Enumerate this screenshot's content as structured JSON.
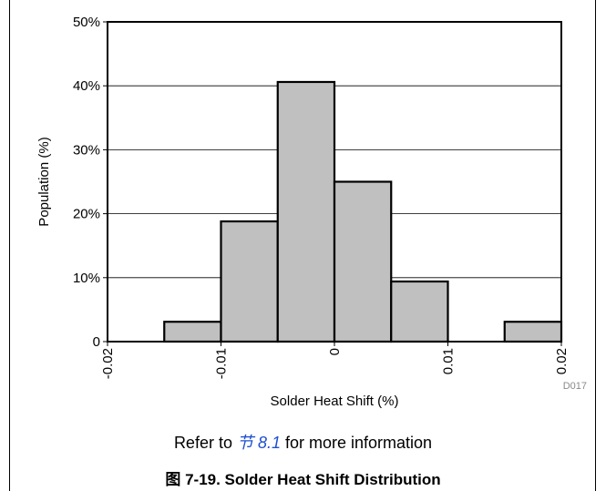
{
  "chart_data": {
    "type": "bar",
    "bins": [
      {
        "x0": -0.015,
        "x1": -0.01,
        "value": 3.1
      },
      {
        "x0": -0.01,
        "x1": -0.005,
        "value": 18.8
      },
      {
        "x0": -0.005,
        "x1": 0.0,
        "value": 40.6
      },
      {
        "x0": 0.0,
        "x1": 0.005,
        "value": 25.0
      },
      {
        "x0": 0.005,
        "x1": 0.01,
        "value": 9.4
      },
      {
        "x0": 0.01,
        "x1": 0.015,
        "value": 0.0
      },
      {
        "x0": 0.015,
        "x1": 0.02,
        "value": 3.1
      }
    ],
    "xlabel": "Solder Heat Shift (%)",
    "ylabel": "Population (%)",
    "xlim": [
      -0.02,
      0.02
    ],
    "ylim": [
      0,
      50
    ],
    "xticks": [
      -0.02,
      -0.01,
      0,
      0.01,
      0.02
    ],
    "xtick_labels": [
      "-0.02",
      "-0.01",
      "0",
      "0.01",
      "0.02"
    ],
    "yticks": [
      0,
      10,
      20,
      30,
      40,
      50
    ],
    "ytick_labels": [
      "0",
      "10%",
      "20%",
      "30%",
      "40%",
      "50%"
    ],
    "grid": "horizontal",
    "bar_color": "#c0c0c0",
    "code": "D017"
  },
  "note": {
    "prefix": "Refer to ",
    "link": "节 8.1",
    "suffix": " for more information"
  },
  "caption": "图 7-19. Solder Heat Shift Distribution"
}
